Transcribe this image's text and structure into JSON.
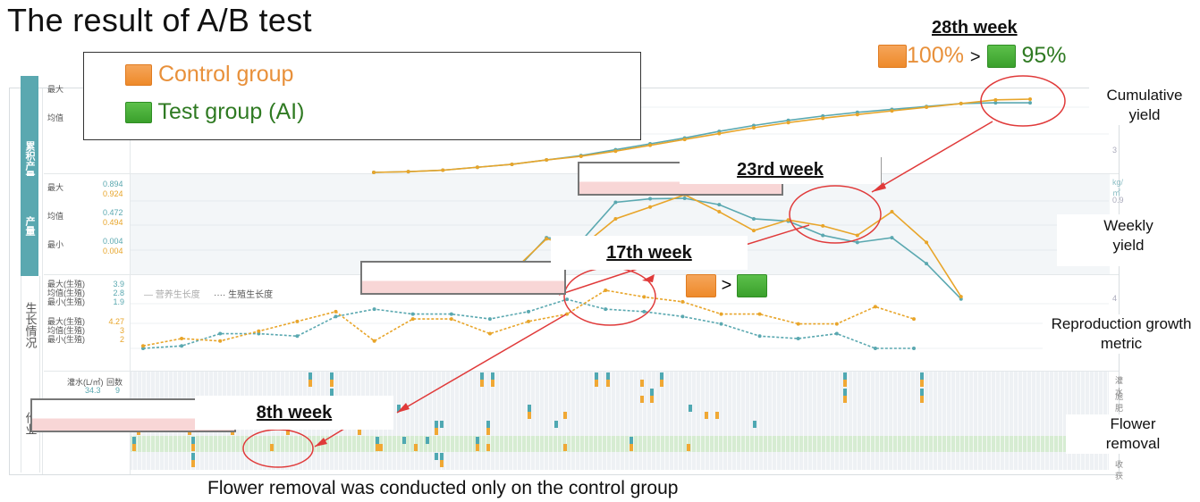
{
  "title": "The result of A/B test",
  "legend": {
    "control": {
      "label": "Control group",
      "color": "#ee8a2a"
    },
    "test": {
      "label": "Test group (AI)",
      "color": "#3aa02c"
    }
  },
  "callouts": {
    "week28": {
      "label": "28th week",
      "control_pct": "100%",
      "gt": ">",
      "test_pct": "95%"
    },
    "week23": {
      "label": "23rd week"
    },
    "week17": {
      "label": "17th week",
      "gt": ">"
    },
    "week8": {
      "label": "8th week"
    }
  },
  "side_annotations": {
    "cumulative": "Cumulative yield",
    "weekly": "Weekly yield",
    "reproduction": "Reproduction growth metric",
    "flower": "Flower removal"
  },
  "caption": "Flower removal was conducted only on the control group",
  "dashboard": {
    "sections": {
      "cumulative": {
        "tab": "累积产量",
        "max_label": "最大",
        "mean_label": "均值",
        "axis_tick": "3"
      },
      "weekly": {
        "tab": "产量",
        "unit": "kg/㎡",
        "axis_tick": "0.9",
        "stats": [
          {
            "label": "最大",
            "test": "0.894",
            "control": "0.924"
          },
          {
            "label": "均值",
            "test": "0.472",
            "control": "0.494"
          },
          {
            "label": "最小",
            "test": "0.004",
            "control": "0.004"
          }
        ]
      },
      "growth": {
        "tab": "生长情况",
        "axis_tick": "4",
        "legend_vegetative": "— 营养生长度",
        "legend_reproductive": "···· 生殖生长度",
        "stats_test": [
          {
            "label": "最大(生殖)",
            "value": "3.9"
          },
          {
            "label": "均值(生殖)",
            "value": "2.8"
          },
          {
            "label": "最小(生殖)",
            "value": "1.9"
          }
        ],
        "stats_control": [
          {
            "label": "最大(生殖)",
            "value": "4.27"
          },
          {
            "label": "均值(生殖)",
            "value": "3"
          },
          {
            "label": "最小(生殖)",
            "value": "2"
          }
        ]
      },
      "operations": {
        "tab": "作业",
        "header_water": "灌水(L/㎡)",
        "header_count": "回数",
        "water_value": "34.3",
        "count_value": "9",
        "right_labels": [
          "灌水",
          "施肥",
          "",
          "",
          "",
          "收获"
        ]
      }
    }
  },
  "chart_data": [
    {
      "type": "line",
      "title": "Cumulative yield",
      "x": [
        9,
        10,
        11,
        12,
        13,
        14,
        15,
        16,
        17,
        18,
        19,
        20,
        21,
        22,
        23,
        24,
        25,
        26,
        27,
        28
      ],
      "series": [
        {
          "name": "Control group",
          "color": "#e8a52a",
          "values": [
            0.0,
            0.01,
            0.03,
            0.07,
            0.11,
            0.17,
            0.22,
            0.29,
            0.37,
            0.45,
            0.53,
            0.61,
            0.68,
            0.74,
            0.79,
            0.84,
            0.89,
            0.94,
            0.99,
            1.0
          ]
        },
        {
          "name": "Test group (AI)",
          "color": "#5aa8b0",
          "values": [
            0.0,
            0.01,
            0.03,
            0.07,
            0.11,
            0.17,
            0.23,
            0.31,
            0.39,
            0.47,
            0.56,
            0.64,
            0.71,
            0.77,
            0.82,
            0.86,
            0.9,
            0.94,
            0.95,
            0.95
          ]
        }
      ],
      "annotation": "28th week: Control 100% > Test 95%"
    },
    {
      "type": "line",
      "title": "Weekly yield",
      "ylabel": "kg/㎡",
      "x": [
        9,
        10,
        11,
        12,
        13,
        14,
        15,
        16,
        17,
        18,
        19,
        20,
        21,
        22,
        23,
        24,
        25,
        26,
        27,
        28
      ],
      "series": [
        {
          "name": "Control group",
          "color": "#e8a52a",
          "values": [
            0.004,
            0.05,
            0.15,
            0.28,
            0.27,
            0.55,
            0.48,
            0.72,
            0.82,
            0.924,
            0.78,
            0.62,
            0.71,
            0.66,
            0.58,
            0.78,
            0.52,
            0.06,
            0.0,
            0.0
          ]
        },
        {
          "name": "Test group (AI)",
          "color": "#5aa8b0",
          "values": [
            0.004,
            0.04,
            0.12,
            0.25,
            0.25,
            0.56,
            0.53,
            0.86,
            0.89,
            0.894,
            0.84,
            0.72,
            0.7,
            0.58,
            0.52,
            0.56,
            0.34,
            0.04,
            0.0,
            0.0
          ]
        }
      ],
      "annotation": "23rd week"
    },
    {
      "type": "line",
      "title": "Reproduction growth metric",
      "x": [
        1,
        2,
        3,
        4,
        5,
        6,
        7,
        8,
        9,
        10,
        11,
        12,
        13,
        14,
        15,
        16,
        17,
        18,
        19,
        20,
        21
      ],
      "series": [
        {
          "name": "Control group",
          "color": "#e8a52a",
          "values": [
            2.0,
            2.3,
            2.2,
            2.6,
            3.0,
            3.4,
            2.2,
            3.1,
            3.1,
            2.5,
            3.0,
            3.3,
            4.27,
            4.0,
            3.8,
            3.3,
            3.3,
            2.9,
            2.9,
            3.6,
            3.1
          ]
        },
        {
          "name": "Test group (AI)",
          "color": "#5aa8b0",
          "values": [
            1.9,
            2.0,
            2.5,
            2.5,
            2.4,
            3.2,
            3.5,
            3.3,
            3.3,
            3.1,
            3.4,
            3.9,
            3.5,
            3.4,
            3.2,
            2.9,
            2.4,
            2.3,
            2.5,
            1.9,
            1.9
          ]
        }
      ],
      "annotation": "17th week: Control > Test"
    }
  ]
}
